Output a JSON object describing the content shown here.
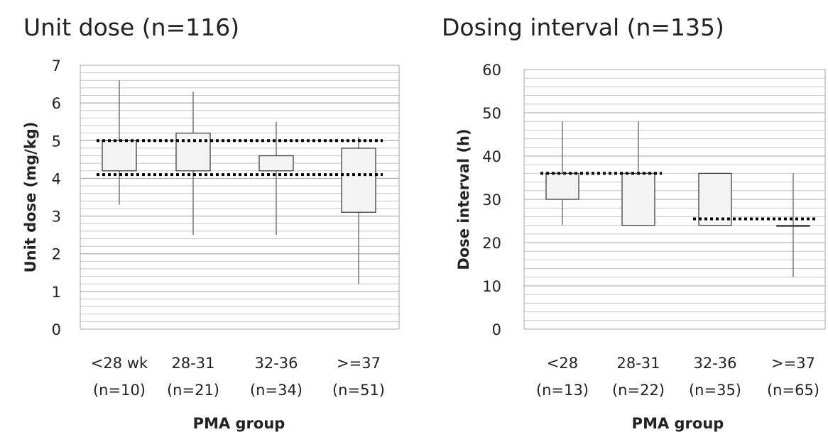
{
  "chart_data": [
    {
      "type": "box",
      "title": "Unit dose (n=116)",
      "ylabel": "Unit dose (mg/kg)",
      "xlabel": "PMA group",
      "ylim": [
        0,
        7
      ],
      "yticks": [
        0,
        1,
        2,
        3,
        4,
        5,
        6,
        7
      ],
      "minor_step": 0.2,
      "categories": [
        {
          "line1": "<28 wk",
          "line2": "(n=10)"
        },
        {
          "line1": "28-31",
          "line2": "(n=21)"
        },
        {
          "line1": "32-36",
          "line2": "(n=34)"
        },
        {
          "line1": ">=37",
          "line2": "(n=51)"
        }
      ],
      "boxes": [
        {
          "low": 3.3,
          "q1": 4.2,
          "q3": 5.0,
          "high": 6.6
        },
        {
          "low": 2.5,
          "q1": 4.2,
          "q3": 5.2,
          "high": 6.3
        },
        {
          "low": 2.5,
          "q1": 4.2,
          "q3": 4.6,
          "high": 5.5
        },
        {
          "low": 1.2,
          "q1": 3.1,
          "q3": 4.8,
          "high": 5.1
        }
      ],
      "reference_lines": [
        {
          "y": 5.0,
          "from_category": 0,
          "to_category": 3
        },
        {
          "y": 4.1,
          "from_category": 0,
          "to_category": 3
        }
      ],
      "grid": true
    },
    {
      "type": "box",
      "title": "Dosing interval (n=135)",
      "ylabel": "Dose interval (h)",
      "xlabel": "PMA group",
      "ylim": [
        0,
        60
      ],
      "yticks": [
        0,
        10,
        20,
        30,
        40,
        50,
        60
      ],
      "minor_step": 2,
      "categories": [
        {
          "line1": "<28",
          "line2": "(n=13)"
        },
        {
          "line1": "28-31",
          "line2": "(n=22)"
        },
        {
          "line1": "32-36",
          "line2": "(n=35)"
        },
        {
          "line1": ">=37",
          "line2": "(n=65)"
        }
      ],
      "boxes": [
        {
          "low": 24,
          "q1": 30,
          "q3": 36,
          "high": 48
        },
        {
          "low": 24,
          "q1": 24,
          "q3": 36,
          "high": 48
        },
        {
          "low": 24,
          "q1": 24,
          "q3": 36,
          "high": 36
        },
        {
          "low": 12,
          "q1": 24,
          "q3": 24,
          "high": 36
        }
      ],
      "reference_lines": [
        {
          "y": 36,
          "from_category": 0,
          "to_category": 1
        },
        {
          "y": 25.5,
          "from_category": 2,
          "to_category": 3
        }
      ],
      "grid": true
    }
  ]
}
